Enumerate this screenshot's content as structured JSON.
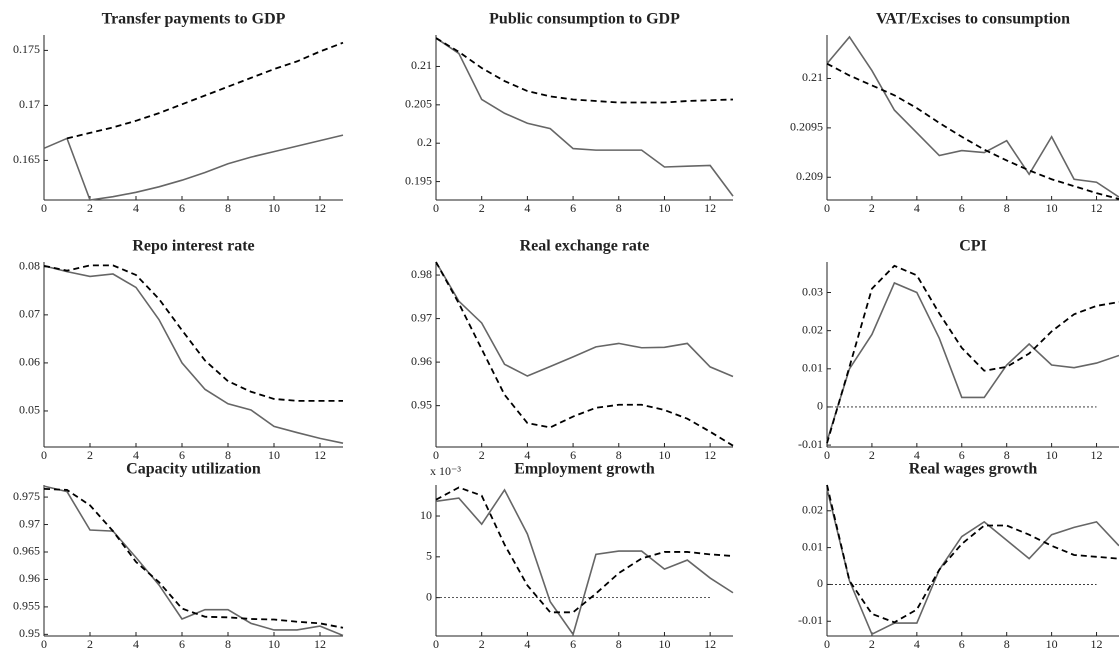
{
  "chart_data": [
    {
      "type": "line",
      "title": "Transfer payments to GDP",
      "x": [
        0,
        1,
        2,
        3,
        4,
        5,
        6,
        7,
        8,
        9,
        10,
        11,
        12,
        13
      ],
      "xlim": [
        0,
        13
      ],
      "xticks": [
        0,
        2,
        4,
        6,
        8,
        10,
        12
      ],
      "ylim": [
        0.1614,
        0.1764
      ],
      "yticks": [
        0.165,
        0.17,
        0.175
      ],
      "series": [
        {
          "color": "#666666",
          "dash": false,
          "values": [
            0.1661,
            0.167,
            0.1614,
            0.1617,
            0.1621,
            0.1626,
            0.1632,
            0.1639,
            0.1647,
            0.1653,
            0.1658,
            0.1663,
            0.1668,
            0.1673
          ]
        },
        {
          "color": "#000000",
          "dash": true,
          "values": [
            null,
            0.167,
            0.1675,
            0.168,
            0.1686,
            0.1693,
            0.1701,
            0.1709,
            0.1717,
            0.1725,
            0.1733,
            0.174,
            0.1749,
            0.1757
          ]
        }
      ]
    },
    {
      "type": "line",
      "title": "Public consumption to GDP",
      "x": [
        0,
        1,
        2,
        3,
        4,
        5,
        6,
        7,
        8,
        9,
        10,
        11,
        12,
        13
      ],
      "xlim": [
        0,
        13
      ],
      "xticks": [
        0,
        2,
        4,
        6,
        8,
        10,
        12
      ],
      "ylim": [
        0.1926,
        0.2141
      ],
      "yticks": [
        0.195,
        0.2,
        0.205,
        0.21
      ],
      "series": [
        {
          "color": "#666666",
          "dash": false,
          "values": [
            0.2137,
            0.2117,
            0.2057,
            0.2039,
            0.2026,
            0.2019,
            0.1993,
            0.1991,
            0.1991,
            0.1991,
            0.1969,
            0.197,
            0.1971,
            0.1931
          ]
        },
        {
          "color": "#000000",
          "dash": true,
          "values": [
            0.2137,
            0.2119,
            0.2098,
            0.2081,
            0.2068,
            0.2061,
            0.2057,
            0.2055,
            0.2053,
            0.2053,
            0.2053,
            0.2055,
            0.2056,
            0.2057
          ]
        }
      ]
    },
    {
      "type": "line",
      "title": "VAT/Excises to consumption",
      "x": [
        0,
        1,
        2,
        3,
        4,
        5,
        6,
        7,
        8,
        9,
        10,
        11,
        12,
        13
      ],
      "xlim": [
        0,
        13
      ],
      "xticks": [
        0,
        2,
        4,
        6,
        8,
        10,
        12
      ],
      "ylim": [
        0.20877,
        0.21044
      ],
      "yticks": [
        0.209,
        0.2095,
        0.21
      ],
      "series": [
        {
          "color": "#666666",
          "dash": false,
          "values": [
            0.21015,
            0.21042,
            0.21008,
            0.20968,
            0.20945,
            0.20922,
            0.20927,
            0.20925,
            0.20937,
            0.20903,
            0.20941,
            0.20898,
            0.20895,
            0.2088
          ]
        },
        {
          "color": "#000000",
          "dash": true,
          "values": [
            0.21015,
            0.21003,
            0.20993,
            0.20983,
            0.2097,
            0.20955,
            0.20941,
            0.20928,
            0.20917,
            0.20907,
            0.20898,
            0.20891,
            0.20884,
            0.20878
          ]
        }
      ]
    },
    {
      "type": "line",
      "title": "Repo interest rate",
      "x": [
        0,
        1,
        2,
        3,
        4,
        5,
        6,
        7,
        8,
        9,
        10,
        11,
        12,
        13
      ],
      "xlim": [
        0,
        13
      ],
      "xticks": [
        0,
        2,
        4,
        6,
        8,
        10,
        12
      ],
      "ylim": [
        0.0425,
        0.081
      ],
      "yticks": [
        0.05,
        0.06,
        0.07,
        0.08
      ],
      "series": [
        {
          "color": "#666666",
          "dash": false,
          "values": [
            0.0802,
            0.079,
            0.078,
            0.0785,
            0.0757,
            0.069,
            0.06,
            0.0545,
            0.0515,
            0.0502,
            0.0468,
            0.0455,
            0.0443,
            0.0433
          ]
        },
        {
          "color": "#000000",
          "dash": true,
          "values": [
            0.0802,
            0.0792,
            0.0803,
            0.0803,
            0.0783,
            0.0733,
            0.0668,
            0.0605,
            0.0562,
            0.054,
            0.0525,
            0.0521,
            0.0521,
            0.0521
          ]
        }
      ]
    },
    {
      "type": "line",
      "title": "Real exchange rate",
      "x": [
        0,
        1,
        2,
        3,
        4,
        5,
        6,
        7,
        8,
        9,
        10,
        11,
        12,
        13
      ],
      "xlim": [
        0,
        13
      ],
      "xticks": [
        0,
        2,
        4,
        6,
        8,
        10,
        12
      ],
      "ylim": [
        0.9405,
        0.983
      ],
      "yticks": [
        0.95,
        0.96,
        0.97,
        0.98
      ],
      "series": [
        {
          "color": "#666666",
          "dash": false,
          "values": [
            0.983,
            0.974,
            0.969,
            0.9595,
            0.9568,
            0.959,
            0.9612,
            0.9635,
            0.9643,
            0.9633,
            0.9634,
            0.9643,
            0.9589,
            0.9567
          ]
        },
        {
          "color": "#000000",
          "dash": true,
          "values": [
            0.983,
            0.9735,
            0.963,
            0.9525,
            0.946,
            0.945,
            0.9475,
            0.9495,
            0.9502,
            0.9502,
            0.949,
            0.947,
            0.944,
            0.9408
          ]
        }
      ]
    },
    {
      "type": "line",
      "title": "CPI",
      "x": [
        0,
        1,
        2,
        3,
        4,
        5,
        6,
        7,
        8,
        9,
        10,
        11,
        12,
        13
      ],
      "xlim": [
        0,
        13
      ],
      "xticks": [
        0,
        2,
        4,
        6,
        8,
        10,
        12
      ],
      "ylim": [
        -0.0105,
        0.038
      ],
      "yticks": [
        -0.01,
        0,
        0.01,
        0.02,
        0.03
      ],
      "zero_line": true,
      "series": [
        {
          "color": "#666666",
          "dash": false,
          "values": [
            -0.009,
            0.01,
            0.019,
            0.0325,
            0.03,
            0.018,
            0.0025,
            0.0025,
            0.011,
            0.0165,
            0.011,
            0.0103,
            0.0115,
            0.0135
          ]
        },
        {
          "color": "#000000",
          "dash": true,
          "values": [
            -0.0095,
            0.0105,
            0.031,
            0.037,
            0.0345,
            0.0245,
            0.0155,
            0.0095,
            0.0105,
            0.014,
            0.0198,
            0.0243,
            0.0265,
            0.0275
          ]
        }
      ]
    },
    {
      "type": "line",
      "title": "Capacity utilization",
      "x": [
        0,
        1,
        2,
        3,
        4,
        5,
        6,
        7,
        8,
        9,
        10,
        11,
        12,
        13
      ],
      "xlim": [
        0,
        13
      ],
      "xticks": [
        0,
        2,
        4,
        6,
        8,
        10,
        12
      ],
      "ylim": [
        0.9497,
        0.9772
      ],
      "yticks": [
        0.95,
        0.955,
        0.96,
        0.965,
        0.97,
        0.975
      ],
      "series": [
        {
          "color": "#666666",
          "dash": false,
          "values": [
            0.977,
            0.976,
            0.969,
            0.9688,
            0.964,
            0.959,
            0.9528,
            0.9545,
            0.9545,
            0.952,
            0.9508,
            0.9508,
            0.9515,
            0.9498
          ]
        },
        {
          "color": "#000000",
          "dash": true,
          "values": [
            0.9765,
            0.9763,
            0.9735,
            0.9688,
            0.9632,
            0.9595,
            0.9547,
            0.9532,
            0.9531,
            0.9528,
            0.9527,
            0.9523,
            0.952,
            0.9512
          ]
        }
      ]
    },
    {
      "type": "line",
      "title": "Employment growth",
      "annotation": "x 10⁻³",
      "x": [
        0,
        1,
        2,
        3,
        4,
        5,
        6,
        7,
        8,
        9,
        10,
        11,
        12,
        13
      ],
      "xlim": [
        0,
        13
      ],
      "xticks": [
        0,
        2,
        4,
        6,
        8,
        10,
        12
      ],
      "ylim": [
        -4.7,
        13.8
      ],
      "yticks": [
        0,
        5,
        10
      ],
      "zero_line": true,
      "series": [
        {
          "color": "#666666",
          "dash": false,
          "values": [
            11.8,
            12.2,
            9,
            13.2,
            7.8,
            -0.5,
            -4.5,
            5.3,
            5.7,
            5.7,
            3.5,
            4.6,
            2.4,
            0.6
          ]
        },
        {
          "color": "#000000",
          "dash": true,
          "values": [
            12,
            13.5,
            12.5,
            6.5,
            1.5,
            -1.8,
            -1.8,
            0.5,
            3,
            4.8,
            5.6,
            5.6,
            5.3,
            5.1
          ]
        }
      ]
    },
    {
      "type": "line",
      "title": "Real wages growth",
      "x": [
        0,
        1,
        2,
        3,
        4,
        5,
        6,
        7,
        8,
        9,
        10,
        11,
        12,
        13
      ],
      "xlim": [
        0,
        13
      ],
      "xticks": [
        0,
        2,
        4,
        6,
        8,
        10,
        12
      ],
      "ylim": [
        -0.014,
        0.027
      ],
      "yticks": [
        -0.01,
        0,
        0.01,
        0.02
      ],
      "zero_line": true,
      "series": [
        {
          "color": "#666666",
          "dash": false,
          "values": [
            0.026,
            0.001,
            -0.0135,
            -0.0105,
            -0.0105,
            0.004,
            0.013,
            0.017,
            0.012,
            0.007,
            0.0135,
            0.0155,
            0.017,
            0.0105
          ]
        },
        {
          "color": "#000000",
          "dash": true,
          "values": [
            0.027,
            0.001,
            -0.008,
            -0.0103,
            -0.0068,
            0.004,
            0.011,
            0.016,
            0.016,
            0.0135,
            0.0105,
            0.008,
            0.0075,
            0.007
          ]
        }
      ]
    }
  ]
}
